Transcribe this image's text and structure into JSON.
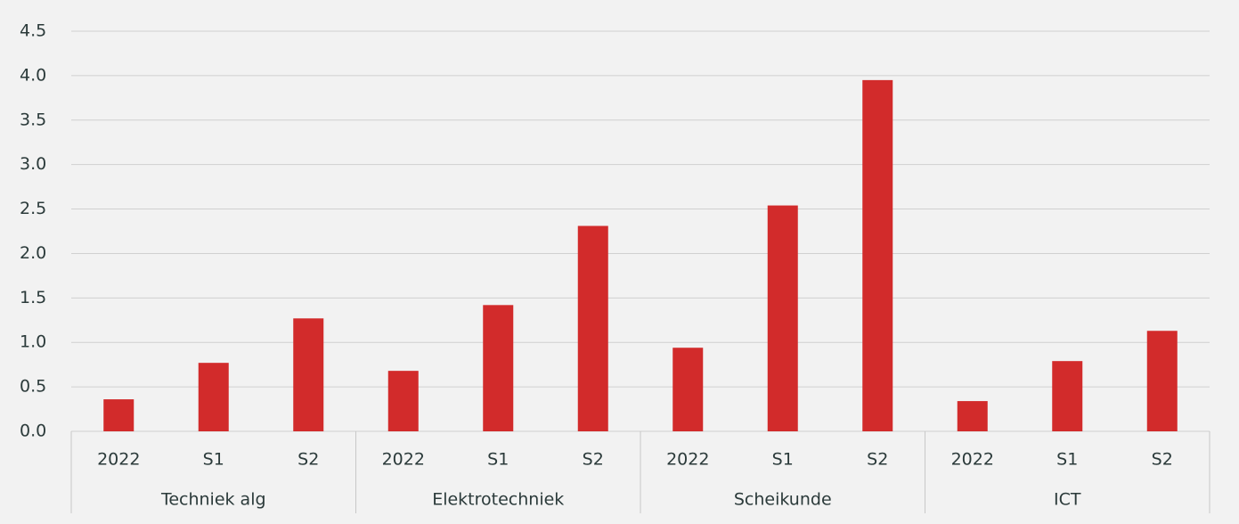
{
  "chart_data": {
    "type": "bar",
    "categories": [
      "2022",
      "S1",
      "S2",
      "2022",
      "S1",
      "S2",
      "2022",
      "S1",
      "S2",
      "2022",
      "S1",
      "S2"
    ],
    "groups": [
      "Techniek alg",
      "Elektrotechniek",
      "Scheikunde",
      "ICT"
    ],
    "values": [
      0.36,
      0.77,
      1.27,
      0.68,
      1.42,
      2.31,
      0.94,
      2.54,
      3.95,
      0.34,
      0.79,
      1.13
    ],
    "color": "#d22b2b",
    "ylim": [
      0,
      4.5
    ],
    "yticks": [
      {
        "value": 0,
        "label": "0.0"
      },
      0.5,
      {
        "value": 1,
        "label": "1.0"
      },
      1.5,
      {
        "value": 2,
        "label": "2.0"
      },
      2.5,
      {
        "value": 3,
        "label": "3.0"
      },
      3.5,
      {
        "value": 4,
        "label": "4.0"
      },
      4.5
    ],
    "grid": true
  }
}
